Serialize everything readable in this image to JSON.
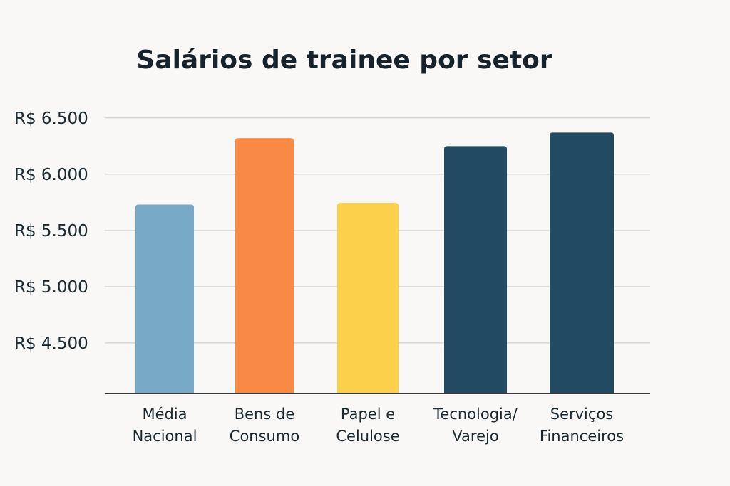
{
  "chart_data": {
    "type": "bar",
    "title": "Salários de trainee por setor",
    "xlabel": "",
    "ylabel": "",
    "categories": [
      [
        "Média",
        "Nacional"
      ],
      [
        "Bens de",
        "Consumo"
      ],
      [
        "Papel e",
        "Celulose"
      ],
      [
        "Tecnologia/",
        "Varejo"
      ],
      [
        "Serviços",
        "Financeiros"
      ]
    ],
    "values": [
      5730,
      6320,
      5745,
      6250,
      6370
    ],
    "colors": [
      "#78a9c6",
      "#f98a46",
      "#fdd04c",
      "#234a63",
      "#234a63"
    ],
    "ylim": [
      4050,
      6600
    ],
    "yticks": [
      4500,
      5000,
      5500,
      6000,
      6500
    ],
    "ytick_labels": [
      "R$ 4.500",
      "R$ 5.000",
      "R$ 5.500",
      "R$ 6.000",
      "R$ 6.500"
    ],
    "grid": true,
    "legend": "none"
  }
}
